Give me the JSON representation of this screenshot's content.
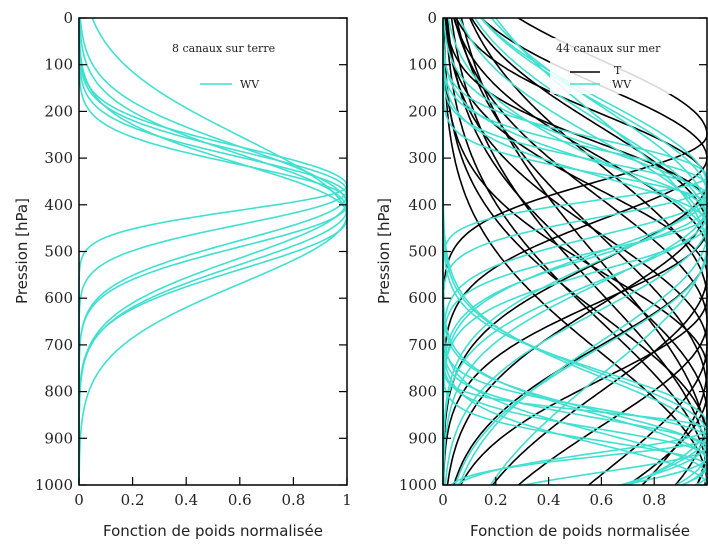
{
  "chart_data": [
    {
      "type": "line",
      "title": "8 canaux sur terre",
      "xlabel": "Fonction de poids normalisée",
      "ylabel": "Pression [hPa]",
      "xlim": [
        0,
        1
      ],
      "ylim": [
        0,
        1000
      ],
      "y_inverted": true,
      "xticks": [
        "0",
        "0.2",
        "0.4",
        "0.6",
        "0.8",
        "1"
      ],
      "yticks": [
        "0",
        "100",
        "200",
        "300",
        "400",
        "500",
        "600",
        "700",
        "800",
        "900",
        "1000"
      ],
      "legend": [
        {
          "label": "WV",
          "color": "#40e0d0"
        }
      ],
      "series": [
        {
          "name": "WV",
          "color": "#40e0d0",
          "peaks": [
            360,
            370,
            380,
            390,
            400,
            410,
            420,
            430
          ],
          "widths": [
            95,
            110,
            125,
            140,
            150,
            165,
            180,
            200
          ]
        }
      ]
    },
    {
      "type": "line",
      "title": "44 canaux sur mer",
      "xlabel": "Fonction de poids normalisée",
      "ylabel": "Pression [hPa]",
      "xlim": [
        0,
        1
      ],
      "ylim": [
        0,
        1000
      ],
      "y_inverted": true,
      "xticks": [
        "0",
        "0.2",
        "0.4",
        "0.6",
        "0.8"
      ],
      "yticks": [
        "0",
        "100",
        "200",
        "300",
        "400",
        "500",
        "600",
        "700",
        "800",
        "900",
        "1000"
      ],
      "legend": [
        {
          "label": "T",
          "color": "#000000"
        },
        {
          "label": "WV",
          "color": "#40e0d0"
        }
      ],
      "series": [
        {
          "name": "T",
          "color": "#000000",
          "peaks": [
            250,
            300,
            350,
            400,
            450,
            500,
            550,
            600,
            650,
            700,
            750,
            800,
            850,
            900,
            930,
            960,
            980,
            1000
          ],
          "widths": [
            180,
            200,
            220,
            240,
            260,
            280,
            300,
            320,
            340,
            360,
            380,
            400,
            420,
            440,
            460,
            480,
            500,
            520
          ]
        },
        {
          "name": "WV",
          "color": "#40e0d0",
          "peaks": [
            340,
            360,
            380,
            400,
            420,
            440,
            880,
            900,
            920,
            940,
            960,
            980,
            1000,
            400,
            380,
            360,
            950,
            930,
            910,
            890,
            870,
            420,
            440,
            460,
            480,
            500
          ],
          "widths": [
            90,
            100,
            110,
            120,
            130,
            140,
            60,
            70,
            80,
            90,
            100,
            110,
            120,
            200,
            220,
            240,
            150,
            160,
            170,
            180,
            190,
            260,
            280,
            300,
            320,
            340
          ]
        }
      ]
    }
  ]
}
